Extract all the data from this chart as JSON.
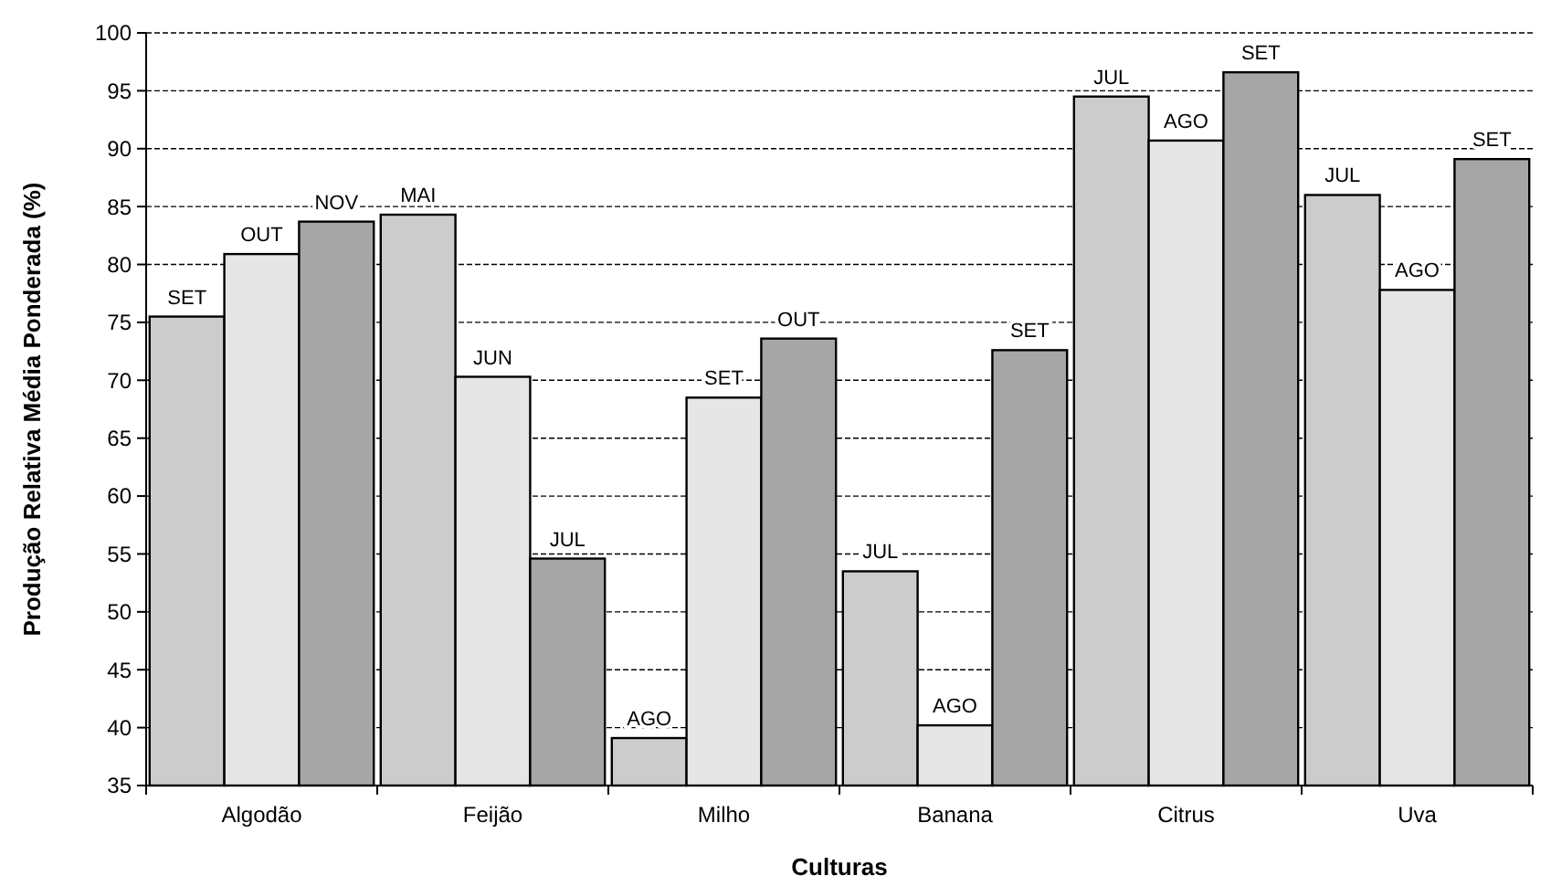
{
  "chart_data": {
    "type": "bar",
    "xlabel": "Culturas",
    "ylabel": "Produção Relativa Média Ponderada (%)",
    "categories": [
      "Algodão",
      "Feijão",
      "Milho",
      "Banana",
      "Citrus",
      "Uva"
    ],
    "series": [
      {
        "color": "#cccccc",
        "values": [
          75.5,
          84.3,
          39.1,
          53.5,
          94.5,
          86.0
        ],
        "value_labels": [
          "SET",
          "MAI",
          "AGO",
          "JUL",
          "JUL",
          "JUL"
        ]
      },
      {
        "color": "#e6e6e6",
        "values": [
          80.9,
          70.3,
          68.5,
          40.2,
          90.7,
          77.8
        ],
        "value_labels": [
          "OUT",
          "JUN",
          "SET",
          "AGO",
          "AGO",
          "AGO"
        ]
      },
      {
        "color": "#a6a6a6",
        "values": [
          83.7,
          54.6,
          73.6,
          72.6,
          96.6,
          89.1
        ],
        "value_labels": [
          "NOV",
          "JUL",
          "OUT",
          "SET",
          "SET",
          "SET"
        ]
      }
    ],
    "ylim": [
      35,
      100
    ],
    "yticks": [
      35,
      40,
      45,
      50,
      55,
      60,
      65,
      70,
      75,
      80,
      85,
      90,
      95,
      100
    ],
    "grid": "y"
  }
}
